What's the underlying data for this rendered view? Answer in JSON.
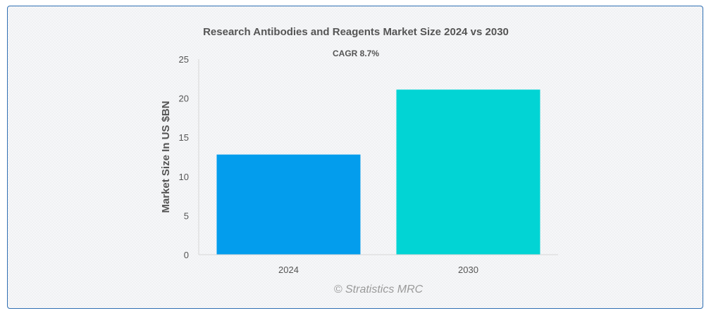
{
  "chart_data": {
    "type": "bar",
    "title": "Research Antibodies and Reagents Market Size 2024 vs 2030",
    "subtitle": "CAGR 8.7%",
    "categories": [
      "2024",
      "2030"
    ],
    "values": [
      12.8,
      21.1
    ],
    "colors": [
      "#039ded",
      "#02d4d4"
    ],
    "ylabel": "Market Size In US $BN",
    "xlabel": "",
    "ylim": [
      0,
      25
    ],
    "yticks": [
      "0",
      "5",
      "10",
      "15",
      "20",
      "25"
    ],
    "grid": false,
    "legend": "none"
  },
  "credit": "© Stratistics MRC"
}
